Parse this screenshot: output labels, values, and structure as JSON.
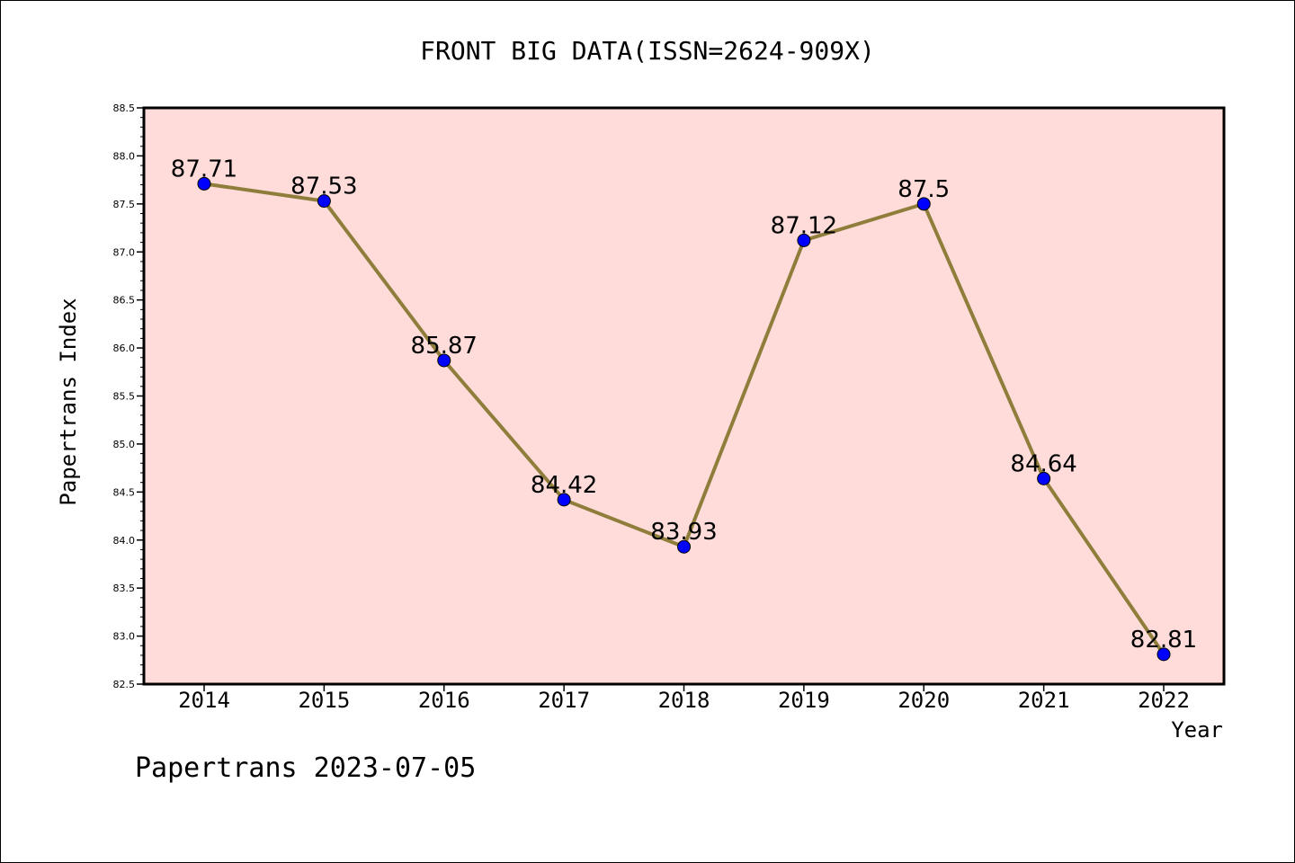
{
  "chart_data": {
    "type": "line",
    "title": "FRONT BIG DATA(ISSN=2624-909X)",
    "xlabel": "Year",
    "ylabel": "Papertrans Index",
    "categories": [
      "2014",
      "2015",
      "2016",
      "2017",
      "2018",
      "2019",
      "2020",
      "2021",
      "2022"
    ],
    "series": [
      {
        "values": [
          87.71,
          87.53,
          85.87,
          84.42,
          83.93,
          87.12,
          87.5,
          84.64,
          82.81
        ],
        "data_labels": [
          "87.71",
          "87.53",
          "85.87",
          "84.42",
          "83.93",
          "87.12",
          "87.5",
          "84.64",
          "82.81"
        ]
      }
    ],
    "ylim": [
      82.5,
      88.5
    ],
    "yticks": [
      "82.5",
      "83.0",
      "83.5",
      "84.0",
      "84.5",
      "85.0",
      "85.5",
      "86.0",
      "86.5",
      "87.0",
      "87.5",
      "88.0",
      "88.5"
    ],
    "grid": false,
    "footer": "Papertrans 2023-07-05",
    "colors": {
      "plot_background": "#ffdcda",
      "line": "#8f7e3b",
      "marker": "#0000ff",
      "axis": "#000000"
    }
  }
}
